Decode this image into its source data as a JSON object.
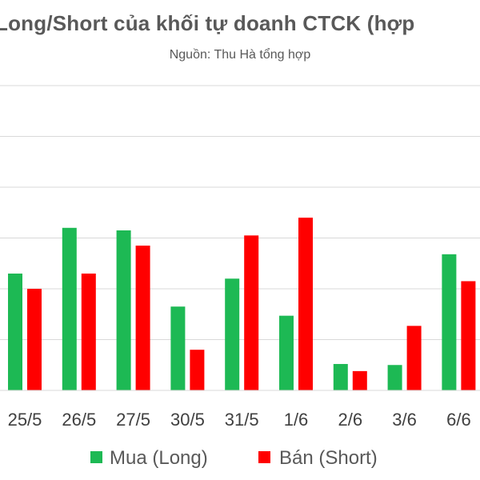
{
  "chart_data": {
    "type": "bar",
    "title": "Long/Short của khối tự doanh CTCK (hợp",
    "subtitle": "Nguồn: Thu Hà tổng hợp",
    "categories": [
      "25/5",
      "26/5",
      "27/5",
      "30/5",
      "31/5",
      "1/6",
      "2/6",
      "3/6",
      "6/6"
    ],
    "series": [
      {
        "name": "Mua (Long)",
        "color": "#1DB954",
        "values": [
          2.3,
          3.2,
          3.15,
          1.65,
          2.2,
          1.47,
          0.52,
          0.5,
          2.68
        ]
      },
      {
        "name": "Bán (Short)",
        "color": "#FF0000",
        "values": [
          2.0,
          2.3,
          2.85,
          0.8,
          3.05,
          3.4,
          0.38,
          1.27,
          2.15
        ]
      }
    ],
    "ylim": [
      0,
      6
    ],
    "grid": true,
    "legend": "bottom",
    "xlabel": "",
    "ylabel": ""
  }
}
